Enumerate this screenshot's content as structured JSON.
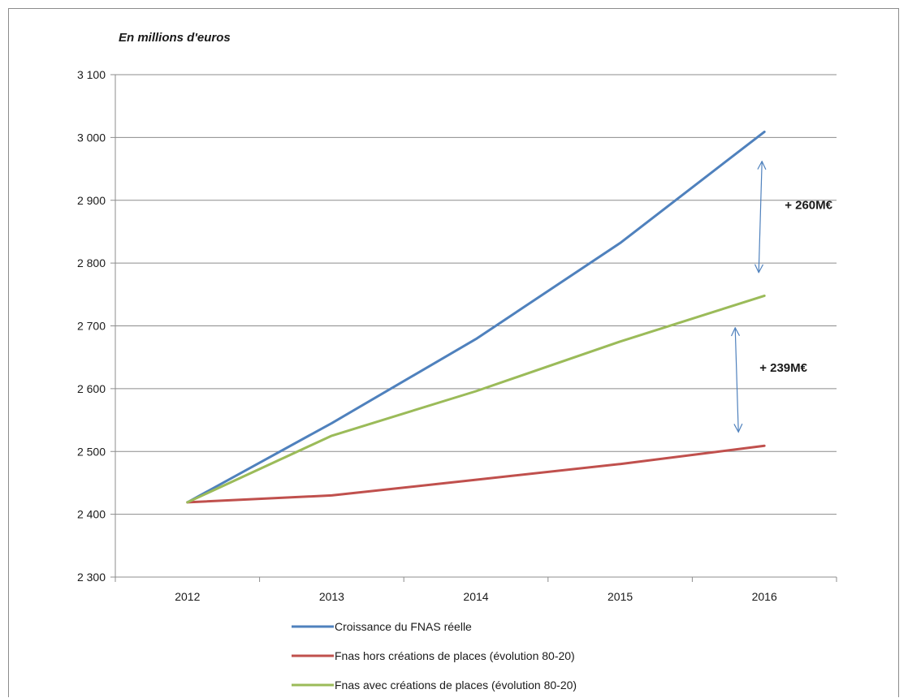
{
  "chart_data": {
    "type": "line",
    "unit_label": "En millions d'euros",
    "x": [
      "2012",
      "2013",
      "2014",
      "2015",
      "2016"
    ],
    "ylim": [
      2300,
      3100
    ],
    "yticks": [
      2300,
      2400,
      2500,
      2600,
      2700,
      2800,
      2900,
      3000,
      3100
    ],
    "ytick_labels": [
      "2 300",
      "2 400",
      "2 500",
      "2 600",
      "2 700",
      "2 800",
      "2 900",
      "3 000",
      "3 100"
    ],
    "grid": true,
    "legend_position": "bottom",
    "series": [
      {
        "name": "Croissance du FNAS réelle",
        "color": "#4f81bd",
        "values": [
          2419,
          2545,
          2679,
          2832,
          3009
        ]
      },
      {
        "name": "Fnas hors créations de places (évolution 80-20)",
        "color": "#c0504d",
        "values": [
          2419,
          2430,
          2455,
          2480,
          2509
        ]
      },
      {
        "name": "Fnas avec créations de places (évolution 80-20)",
        "color": "#9bbb59",
        "values": [
          2419,
          2525,
          2596,
          2675,
          2748
        ]
      }
    ],
    "annotations": [
      {
        "text": "+ 260M€",
        "x": "2016",
        "y_from": 2962,
        "y_to": 2785
      },
      {
        "text": "+ 239M€",
        "x": "2016",
        "y_from": 2697,
        "y_to": 2531
      }
    ]
  }
}
